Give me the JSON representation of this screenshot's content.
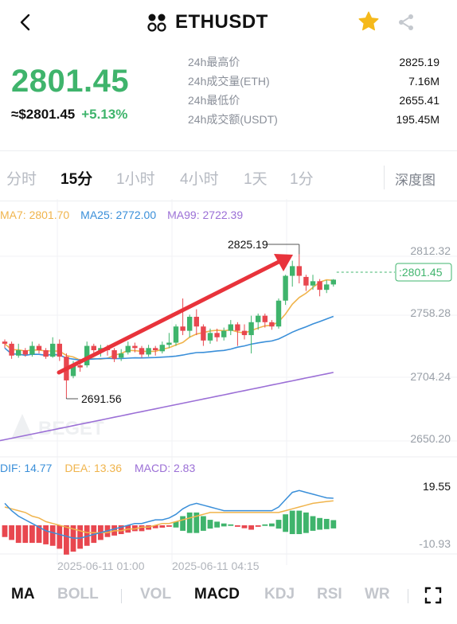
{
  "header": {
    "title": "ETHUSDT"
  },
  "price": {
    "last": "2801.45",
    "usd": "≈$2801.45",
    "change": "+5.13%"
  },
  "stats": [
    {
      "label": "24h最高价",
      "value": "2825.19"
    },
    {
      "label": "24h成交量(ETH)",
      "value": "7.16M"
    },
    {
      "label": "24h最低价",
      "value": "2655.41"
    },
    {
      "label": "24h成交额(USDT)",
      "value": "195.45M"
    }
  ],
  "intervals": [
    "分时",
    "15分",
    "1小时",
    "4小时",
    "1天",
    "1分"
  ],
  "active_interval": "15分",
  "depth_label": "深度图",
  "ma_legend": {
    "ma7": "MA7: 2801.70",
    "ma25": "MA25: 2772.00",
    "ma99": "MA99: 2722.39"
  },
  "macd_legend": {
    "dif": "DIF: 14.77",
    "dea": "DEA: 13.36",
    "macd": "MACD: 2.83"
  },
  "main_indicators": [
    "MA",
    "BOLL"
  ],
  "sub_indicators": [
    "VOL",
    "MACD",
    "KDJ",
    "RSI",
    "WR"
  ],
  "active_main": "MA",
  "active_sub": "MACD",
  "colors": {
    "up": "#3fb46c",
    "down": "#e8474f",
    "ma7": "#f0b44c",
    "ma25": "#3a8fd9",
    "ma99": "#9b6fd6",
    "accent_star": "#f5b91b"
  },
  "chart_data": {
    "type": "candlestick",
    "price_axis": [
      "2812.32",
      "2758.28",
      "2704.24",
      "2650.20"
    ],
    "current_price_label": "2801.45",
    "high_marker": "2825.19",
    "low_marker": "2691.56",
    "time_labels": [
      "2025-06-11 01:00",
      "2025-06-11 04:15"
    ],
    "macd_axis": [
      "19.55",
      "-10.93"
    ],
    "watermark": "BEGET",
    "candles": [
      [
        2744,
        2742,
        2746,
        2738
      ],
      [
        2742,
        2731,
        2744,
        2728
      ],
      [
        2731,
        2736,
        2742,
        2729
      ],
      [
        2736,
        2732,
        2738,
        2730
      ],
      [
        2732,
        2740,
        2744,
        2730
      ],
      [
        2740,
        2736,
        2742,
        2733
      ],
      [
        2736,
        2730,
        2738,
        2728
      ],
      [
        2730,
        2742,
        2748,
        2729
      ],
      [
        2742,
        2730,
        2746,
        2726
      ],
      [
        2730,
        2708,
        2733,
        2692
      ],
      [
        2712,
        2722,
        2726,
        2710
      ],
      [
        2722,
        2720,
        2728,
        2716
      ],
      [
        2722,
        2740,
        2744,
        2720
      ],
      [
        2740,
        2736,
        2742,
        2730
      ],
      [
        2734,
        2738,
        2741,
        2730
      ],
      [
        2738,
        2736,
        2741,
        2731
      ],
      [
        2736,
        2728,
        2738,
        2725
      ],
      [
        2729,
        2733,
        2737,
        2726
      ],
      [
        2734,
        2740,
        2744,
        2732
      ],
      [
        2740,
        2738,
        2743,
        2734
      ],
      [
        2738,
        2732,
        2740,
        2729
      ],
      [
        2732,
        2738,
        2741,
        2730
      ],
      [
        2738,
        2736,
        2740,
        2731
      ],
      [
        2735,
        2741,
        2744,
        2733
      ],
      [
        2741,
        2743,
        2752,
        2738
      ],
      [
        2743,
        2758,
        2760,
        2740
      ],
      [
        2758,
        2754,
        2784,
        2750
      ],
      [
        2754,
        2767,
        2769,
        2748
      ],
      [
        2767,
        2758,
        2774,
        2750
      ],
      [
        2758,
        2745,
        2760,
        2740
      ],
      [
        2745,
        2752,
        2756,
        2742
      ],
      [
        2752,
        2748,
        2756,
        2744
      ],
      [
        2748,
        2754,
        2757,
        2745
      ],
      [
        2754,
        2760,
        2764,
        2750
      ],
      [
        2760,
        2754,
        2762,
        2740
      ],
      [
        2754,
        2750,
        2760,
        2746
      ],
      [
        2750,
        2762,
        2768,
        2733
      ],
      [
        2762,
        2768,
        2770,
        2755
      ],
      [
        2768,
        2762,
        2770,
        2757
      ],
      [
        2762,
        2758,
        2764,
        2755
      ],
      [
        2758,
        2782,
        2784,
        2756
      ],
      [
        2782,
        2805,
        2806,
        2778
      ],
      [
        2805,
        2814,
        2819,
        2795
      ],
      [
        2814,
        2805,
        2825,
        2798
      ],
      [
        2804,
        2796,
        2806,
        2791
      ],
      [
        2796,
        2800,
        2806,
        2792
      ],
      [
        2800,
        2792,
        2802,
        2786
      ],
      [
        2792,
        2797,
        2801,
        2789
      ],
      [
        2797,
        2801.45,
        2802,
        2795
      ]
    ],
    "dif": [
      12,
      8,
      5,
      3,
      1,
      -1,
      -3,
      -4,
      -5,
      -6,
      -7,
      -7,
      -6,
      -5,
      -4,
      -3,
      -2,
      -1,
      0,
      1,
      1,
      2,
      3,
      3,
      4,
      6,
      9,
      11,
      12,
      11,
      10,
      9,
      8,
      8,
      8,
      8,
      8,
      8,
      8,
      8,
      10,
      14,
      18,
      19,
      18,
      17,
      16,
      15,
      14.77
    ],
    "dea": [
      10,
      9,
      8,
      7,
      5,
      4,
      2,
      1,
      0,
      -1,
      -2,
      -3,
      -4,
      -4,
      -4,
      -4,
      -3,
      -3,
      -2,
      -2,
      -1,
      -1,
      0,
      1,
      1,
      2,
      3,
      4,
      5,
      6,
      7,
      7,
      7,
      7,
      7,
      7,
      7,
      7,
      7,
      7,
      7,
      8,
      9,
      10,
      11,
      12,
      12.5,
      13,
      13.36
    ],
    "macd": [
      -4,
      -5,
      -6,
      -6,
      -6,
      -6,
      -6.5,
      -7,
      -8,
      -10,
      -9,
      -8,
      -7,
      -6,
      -5,
      -4,
      -3.5,
      -3,
      -2.5,
      -2,
      -2,
      -1.5,
      -1,
      -0.8,
      -0.5,
      2,
      5,
      7,
      7,
      5,
      3,
      2,
      1,
      0.5,
      -0.5,
      -1,
      -1.5,
      -0.5,
      0.5,
      1,
      3,
      6,
      8,
      8,
      7,
      5,
      4,
      3.5,
      2.83
    ]
  }
}
